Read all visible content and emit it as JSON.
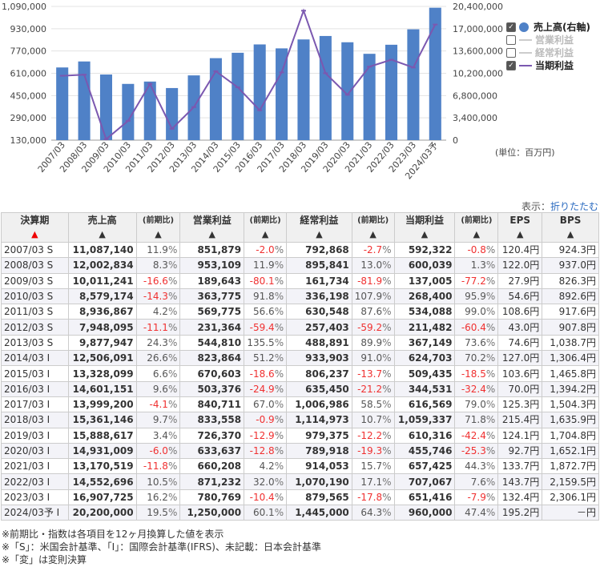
{
  "chart_data": {
    "type": "bar+line",
    "categories": [
      "2007/03",
      "2008/03",
      "2009/03",
      "2010/03",
      "2011/03",
      "2012/03",
      "2013/03",
      "2014/03",
      "2015/03",
      "2016/03",
      "2017/03",
      "2018/03",
      "2019/03",
      "2020/03",
      "2021/03",
      "2022/03",
      "2023/03",
      "2024/03予"
    ],
    "series": [
      {
        "name": "売上高(右軸)",
        "type": "bar",
        "axis": "right",
        "color": "#4f81c7",
        "values": [
          11087140,
          12002834,
          10011241,
          8579174,
          8936867,
          7948095,
          9877947,
          12506091,
          13328099,
          14601151,
          13999200,
          15361146,
          15888617,
          14931009,
          13170519,
          14552696,
          16907725,
          20200000
        ]
      },
      {
        "name": "当期利益",
        "type": "line",
        "axis": "left",
        "color": "#7b58b0",
        "values": [
          592322,
          600039,
          137005,
          268400,
          534088,
          211482,
          367149,
          624703,
          509435,
          344531,
          616569,
          1059337,
          610316,
          455746,
          657425,
          707067,
          651416,
          960000
        ]
      }
    ],
    "left_axis": {
      "min": 130000,
      "max": 1090000,
      "ticks": [
        "1,090,000",
        "930,000",
        "770,000",
        "610,000",
        "450,000",
        "290,000",
        "130,000"
      ]
    },
    "right_axis": {
      "min": 0,
      "max": 20400000,
      "ticks": [
        "20,400,000",
        "17,000,000",
        "13,600,000",
        "10,200,000",
        "6,800,000",
        "3,400,000",
        "0"
      ]
    },
    "legend": [
      {
        "label": "売上高(右軸)",
        "checked": true,
        "active": true
      },
      {
        "label": "営業利益",
        "checked": false,
        "active": false
      },
      {
        "label": "経常利益",
        "checked": false,
        "active": false
      },
      {
        "label": "当期利益",
        "checked": true,
        "active": true
      }
    ],
    "unit": "(単位：百万円)"
  },
  "toggle": {
    "label": "表示：",
    "link": "折りたたむ"
  },
  "table": {
    "headers": [
      "決算期",
      "売上高",
      "(前期比)",
      "営業利益",
      "(前期比)",
      "経常利益",
      "(前期比)",
      "当期利益",
      "(前期比)",
      "EPS",
      "BPS"
    ],
    "rows": [
      [
        "2007/03 S",
        "11,087,140",
        "11.9",
        "851,879",
        "-2.0",
        "792,868",
        "-2.7",
        "592,322",
        "-0.8",
        "120.4円",
        "924.3円"
      ],
      [
        "2008/03 S",
        "12,002,834",
        "8.3",
        "953,109",
        "11.9",
        "895,841",
        "13.0",
        "600,039",
        "1.3",
        "122.0円",
        "937.0円"
      ],
      [
        "2009/03 S",
        "10,011,241",
        "-16.6",
        "189,643",
        "-80.1",
        "161,734",
        "-81.9",
        "137,005",
        "-77.2",
        "27.9円",
        "826.3円"
      ],
      [
        "2010/03 S",
        "8,579,174",
        "-14.3",
        "363,775",
        "91.8",
        "336,198",
        "107.9",
        "268,400",
        "95.9",
        "54.6円",
        "892.6円"
      ],
      [
        "2011/03 S",
        "8,936,867",
        "4.2",
        "569,775",
        "56.6",
        "630,548",
        "87.6",
        "534,088",
        "99.0",
        "108.6円",
        "917.6円"
      ],
      [
        "2012/03 S",
        "7,948,095",
        "-11.1",
        "231,364",
        "-59.4",
        "257,403",
        "-59.2",
        "211,482",
        "-60.4",
        "43.0円",
        "907.8円"
      ],
      [
        "2013/03 S",
        "9,877,947",
        "24.3",
        "544,810",
        "135.5",
        "488,891",
        "89.9",
        "367,149",
        "73.6",
        "74.6円",
        "1,038.7円"
      ],
      [
        "2014/03 I",
        "12,506,091",
        "26.6",
        "823,864",
        "51.2",
        "933,903",
        "91.0",
        "624,703",
        "70.2",
        "127.0円",
        "1,306.4円"
      ],
      [
        "2015/03 I",
        "13,328,099",
        "6.6",
        "670,603",
        "-18.6",
        "806,237",
        "-13.7",
        "509,435",
        "-18.5",
        "103.6円",
        "1,465.8円"
      ],
      [
        "2016/03 I",
        "14,601,151",
        "9.6",
        "503,376",
        "-24.9",
        "635,450",
        "-21.2",
        "344,531",
        "-32.4",
        "70.0円",
        "1,394.2円"
      ],
      [
        "2017/03 I",
        "13,999,200",
        "-4.1",
        "840,711",
        "67.0",
        "1,006,986",
        "58.5",
        "616,569",
        "79.0",
        "125.3円",
        "1,504.3円"
      ],
      [
        "2018/03 I",
        "15,361,146",
        "9.7",
        "833,558",
        "-0.9",
        "1,114,973",
        "10.7",
        "1,059,337",
        "71.8",
        "215.4円",
        "1,635.9円"
      ],
      [
        "2019/03 I",
        "15,888,617",
        "3.4",
        "726,370",
        "-12.9",
        "979,375",
        "-12.2",
        "610,316",
        "-42.4",
        "124.1円",
        "1,704.8円"
      ],
      [
        "2020/03 I",
        "14,931,009",
        "-6.0",
        "633,637",
        "-12.8",
        "789,918",
        "-19.3",
        "455,746",
        "-25.3",
        "92.7円",
        "1,652.1円"
      ],
      [
        "2021/03 I",
        "13,170,519",
        "-11.8",
        "660,208",
        "4.2",
        "914,053",
        "15.7",
        "657,425",
        "44.3",
        "133.7円",
        "1,872.7円"
      ],
      [
        "2022/03 I",
        "14,552,696",
        "10.5",
        "871,232",
        "32.0",
        "1,070,190",
        "17.1",
        "707,067",
        "7.6",
        "143.7円",
        "2,159.5円"
      ],
      [
        "2023/03 I",
        "16,907,725",
        "16.2",
        "780,769",
        "-10.4",
        "879,565",
        "-17.8",
        "651,416",
        "-7.9",
        "132.4円",
        "2,306.1円"
      ],
      [
        "2024/03予 I",
        "20,200,000",
        "19.5",
        "1,250,000",
        "60.1",
        "1,445,000",
        "64.3",
        "960,000",
        "47.4",
        "195.2円",
        "－円"
      ]
    ]
  },
  "notes": [
    "※前期比・指数は各項目を12ヶ月換算した値を表示",
    "※「S」：米国会計基準、「I」：国際会計基準(IFRS)、未記載：日本会計基準",
    "※「変」は変則決算"
  ]
}
